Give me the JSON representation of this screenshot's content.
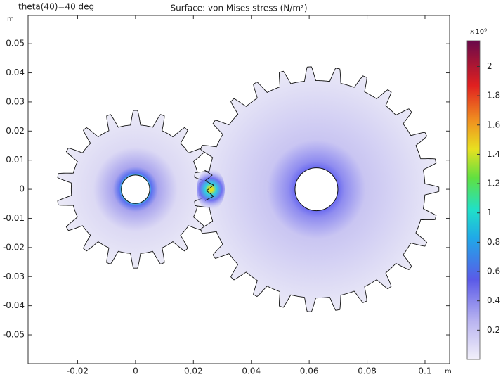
{
  "chart_data": {
    "type": "surface",
    "annotation": "theta(40)=40 deg",
    "title": "Surface: von Mises stress (N/m²)",
    "y_unit": "m",
    "x_unit": "m",
    "xlim": [
      -0.0371,
      0.1085
    ],
    "xticks": [
      -0.02,
      0,
      0.02,
      0.04,
      0.06,
      0.08,
      0.1
    ],
    "ylim": [
      -0.0599,
      0.0597
    ],
    "yticks": [
      -0.05,
      -0.04,
      -0.03,
      -0.02,
      -0.01,
      0,
      0.01,
      0.02,
      0.03,
      0.04,
      0.05
    ],
    "colorbar": {
      "multiplier": "×10⁹",
      "lim": [
        0,
        2.175
      ],
      "ticks": [
        0.2,
        0.4,
        0.6,
        0.8,
        1,
        1.2,
        1.4,
        1.6,
        1.8,
        2
      ]
    }
  }
}
